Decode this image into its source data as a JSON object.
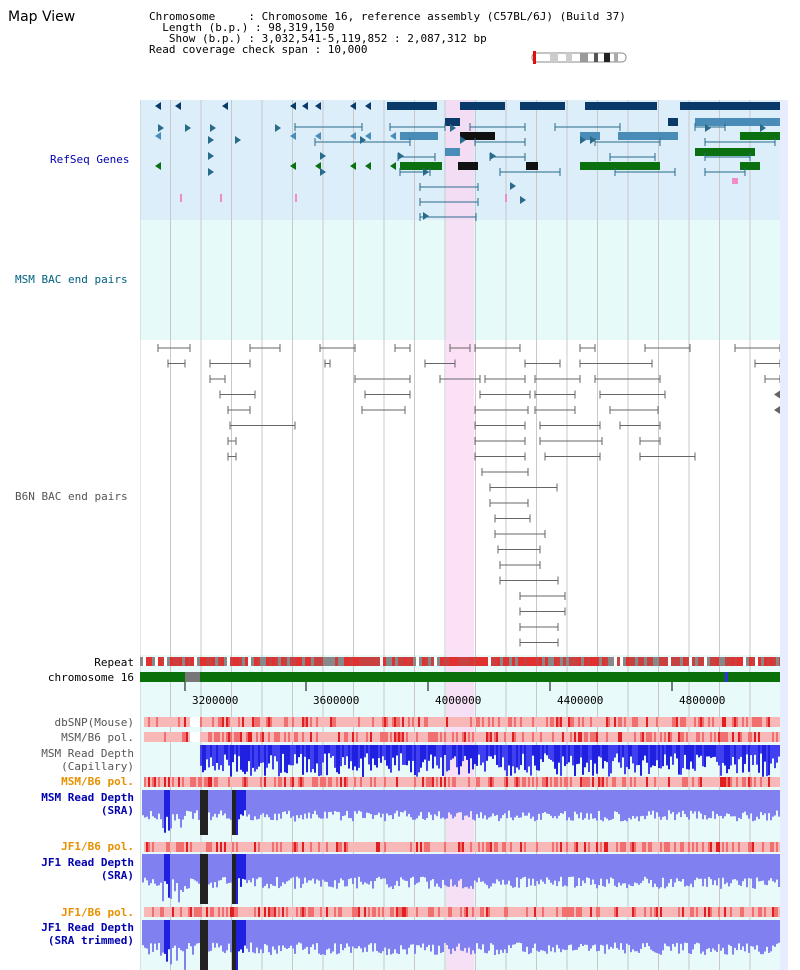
{
  "header": {
    "title": "Map View",
    "info_lines": [
      "Chromosome     : Chromosome 16, reference assembly (C57BL/6J) (Build 37)",
      "  Length (b.p.) : 98,319,150",
      "   Show (b.p.) : 3,032,541-5,119,852 : 2,087,312 bp",
      "Read coverage check span : 10,000"
    ]
  },
  "tracks": {
    "refseq": "RefSeq Genes",
    "msm_bac": "MSM BAC end pairs",
    "b6n_bac": "B6N BAC end pairs",
    "repeat": "Repeat",
    "chromosome": "chromosome 16",
    "dbsnp": "dbSNP(Mouse)",
    "msm_b6_pol_1": "MSM/B6 pol.",
    "msm_depth_cap": "MSM Read Depth\n(Capillary)",
    "msm_b6_pol_2": "MSM/B6 pol.",
    "msm_depth_sra": "MSM Read Depth\n(SRA)",
    "jf1_b6_pol_1": "JF1/B6 pol.",
    "jf1_depth_sra": "JF1 Read Depth\n(SRA)",
    "jf1_b6_pol_2": "JF1/B6 pol.",
    "jf1_depth_trim": "JF1 Read Depth\n(SRA trimmed)"
  },
  "axis": {
    "ticks": [
      "3200000",
      "3600000",
      "4000000",
      "4400000",
      "4800000"
    ]
  },
  "colors": {
    "refseq_bg": "#dbeefa",
    "msm_bac_bg": "#e6fafa",
    "highlight": "#fbd7f3",
    "gene_navy": "#0a3a6a",
    "gene_steel": "#4a8cb8",
    "gene_green": "#0a7010",
    "bac_teal": "#2a6a8a",
    "bac_grey": "#666666",
    "chrom_green": "#0a700a",
    "depth_blue": "#2020e0",
    "depth_light": "#8080f0"
  }
}
